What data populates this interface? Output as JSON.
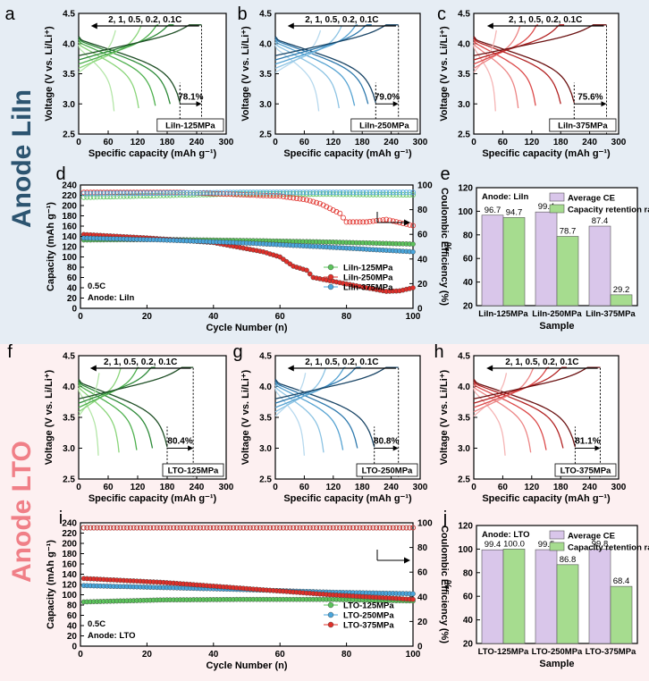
{
  "row_labels": {
    "top": "Anode LiIn",
    "bottom": "Anode LTO"
  },
  "chart_data": [
    {
      "id": "a",
      "type": "line",
      "title": "",
      "rate_label": "2, 1, 0.5, 0.2, 0.1C",
      "sample": "LiIn-125MPa",
      "retention_label": "78.1%",
      "xlabel": "Specific capacity (mAh g⁻¹)",
      "ylabel": "Voltage (V vs. Li/Li⁺)",
      "xlim": [
        0,
        300
      ],
      "ylim": [
        2.5,
        4.5
      ],
      "xticks": [
        "0",
        "60",
        "120",
        "180",
        "240",
        "300"
      ],
      "yticks": [
        "2.5",
        "3.0",
        "3.5",
        "4.0",
        "4.5"
      ],
      "discharge_end": [
        72,
        122,
        156,
        186,
        206
      ],
      "charge_end": 250,
      "colors": [
        "#b4e6a8",
        "#8ad57a",
        "#4eb04e",
        "#2d8a38",
        "#1f4f26"
      ]
    },
    {
      "id": "b",
      "type": "line",
      "title": "",
      "rate_label": "2, 1, 0.5, 0.2, 0.1C",
      "sample": "LiIn-250MPa",
      "retention_label": "79.0%",
      "xlabel": "Specific capacity (mAh g⁻¹)",
      "ylabel": "Voltage (V vs. Li/Li⁺)",
      "xlim": [
        0,
        300
      ],
      "ylim": [
        2.5,
        4.5
      ],
      "xticks": [
        "0",
        "60",
        "120",
        "180",
        "240",
        "300"
      ],
      "yticks": [
        "2.5",
        "3.0",
        "3.5",
        "4.0",
        "4.5"
      ],
      "discharge_end": [
        90,
        132,
        164,
        192,
        208
      ],
      "charge_end": 255,
      "colors": [
        "#b7d9ee",
        "#8cc3e3",
        "#56a3d2",
        "#2e79ad",
        "#1a4566"
      ]
    },
    {
      "id": "c",
      "type": "line",
      "title": "",
      "rate_label": "2, 1, 0.5, 0.2, 0.1C",
      "sample": "LiIn-375MPa",
      "retention_label": "75.6%",
      "xlabel": "Specific capacity (mAh g⁻¹)",
      "ylabel": "Voltage (V vs. Li/Li⁺)",
      "xlim": [
        0,
        300
      ],
      "ylim": [
        2.5,
        4.5
      ],
      "xticks": [
        "0",
        "60",
        "120",
        "180",
        "240",
        "300"
      ],
      "yticks": [
        "2.5",
        "3.0",
        "3.5",
        "4.0",
        "4.5"
      ],
      "discharge_end": [
        45,
        92,
        128,
        180,
        208
      ],
      "charge_end": 275,
      "colors": [
        "#f5b5b5",
        "#ec8585",
        "#dc4a4a",
        "#b22222",
        "#6b1212"
      ]
    },
    {
      "id": "d",
      "type": "scatter",
      "xlabel": "Cycle Number (n)",
      "ylabel": "Capacity (mAh g⁻¹)",
      "y2label": "Coulombic Efficiency (%)",
      "xlim": [
        0,
        100
      ],
      "ylim": [
        0,
        240
      ],
      "y2lim": [
        0,
        100
      ],
      "xticks": [
        "0",
        "20",
        "40",
        "60",
        "80",
        "100"
      ],
      "yticks": [
        "0",
        "20",
        "40",
        "60",
        "80",
        "100",
        "120",
        "140",
        "160",
        "180",
        "200",
        "220",
        "240"
      ],
      "y2ticks": [
        "0",
        "20",
        "40",
        "60",
        "80",
        "100"
      ],
      "note1": "0.5C",
      "note2": "Anode: LiIn",
      "series": [
        {
          "name": "LiIn-125MPa",
          "color": "#5cc45c",
          "capacity": [
            [
              0,
              133
            ],
            [
              25,
              134
            ],
            [
              50,
              132
            ],
            [
              75,
              129
            ],
            [
              100,
              125
            ]
          ],
          "ce": [
            [
              0,
              90
            ],
            [
              50,
              93
            ],
            [
              100,
              92
            ]
          ]
        },
        {
          "name": "LiIn-250MPa",
          "color": "#e0302a",
          "capacity": [
            [
              0,
              144
            ],
            [
              20,
              137
            ],
            [
              40,
              128
            ],
            [
              55,
              110
            ],
            [
              60,
              100
            ],
            [
              64,
              82
            ],
            [
              68,
              74
            ],
            [
              70,
              60
            ],
            [
              78,
              50
            ],
            [
              86,
              40
            ],
            [
              92,
              33
            ],
            [
              96,
              34
            ],
            [
              100,
              40
            ]
          ],
          "ce": [
            [
              0,
              94
            ],
            [
              30,
              94
            ],
            [
              60,
              91
            ],
            [
              68,
              88
            ],
            [
              72,
              85
            ],
            [
              78,
              77
            ],
            [
              80,
              70
            ],
            [
              86,
              70
            ],
            [
              92,
              72
            ],
            [
              100,
              67
            ]
          ]
        },
        {
          "name": "LiIn-375MPa",
          "color": "#4aa6dc",
          "capacity": [
            [
              0,
              137
            ],
            [
              25,
              133
            ],
            [
              50,
              127
            ],
            [
              75,
              119
            ],
            [
              100,
              110
            ]
          ],
          "ce": [
            [
              0,
              93
            ],
            [
              50,
              94
            ],
            [
              100,
              94
            ]
          ]
        }
      ]
    },
    {
      "id": "e",
      "type": "bar",
      "title": "Anode: LiIn",
      "xlabel": "Sample",
      "ylabel": "%",
      "ylim": [
        20,
        120
      ],
      "yticks": [
        "20",
        "40",
        "60",
        "80",
        "100",
        "120"
      ],
      "categories": [
        "LiIn-125MPa",
        "LiIn-250MPa",
        "LiIn-375MPa"
      ],
      "series": [
        {
          "name": "Average CE",
          "color": "#d9c6ea",
          "values": [
            96.7,
            99.4,
            87.4
          ]
        },
        {
          "name": "Capacity retention rate",
          "color": "#a6dc8f",
          "values": [
            94.7,
            78.7,
            29.2
          ]
        }
      ],
      "value_labels": [
        [
          "96.7",
          "94.7"
        ],
        [
          "99.4",
          "78.7"
        ],
        [
          "87.4",
          "29.2"
        ]
      ]
    },
    {
      "id": "f",
      "type": "line",
      "title": "",
      "rate_label": "2, 1, 0.5, 0.2, 0.1C",
      "sample": "LTO-125MPa",
      "retention_label": "80.4%",
      "xlabel": "Specific capacity (mAh g⁻¹)",
      "ylabel": "Voltage (V vs. Li/Li⁺)",
      "xlim": [
        0,
        300
      ],
      "ylim": [
        2.5,
        4.5
      ],
      "xticks": [
        "0",
        "60",
        "120",
        "180",
        "240",
        "300"
      ],
      "yticks": [
        "2.5",
        "3.0",
        "3.5",
        "4.0",
        "4.5"
      ],
      "discharge_end": [
        40,
        82,
        118,
        150,
        180
      ],
      "charge_end": 233,
      "colors": [
        "#b4e6a8",
        "#8ad57a",
        "#4eb04e",
        "#2d8a38",
        "#1f4f26"
      ]
    },
    {
      "id": "g",
      "type": "line",
      "title": "",
      "rate_label": "2, 1, 0.5, 0.2, 0.1C",
      "sample": "LTO-250MPa",
      "retention_label": "80.8%",
      "xlabel": "Specific capacity (mAh g⁻¹)",
      "ylabel": "Voltage (V vs. Li/Li⁺)",
      "xlim": [
        0,
        300
      ],
      "ylim": [
        2.5,
        4.5
      ],
      "xticks": [
        "0",
        "60",
        "120",
        "180",
        "240",
        "300"
      ],
      "yticks": [
        "2.5",
        "3.0",
        "3.5",
        "4.0",
        "4.5"
      ],
      "discharge_end": [
        60,
        100,
        140,
        170,
        205
      ],
      "charge_end": 255,
      "colors": [
        "#b7d9ee",
        "#8cc3e3",
        "#56a3d2",
        "#2e79ad",
        "#1a4566"
      ]
    },
    {
      "id": "h",
      "type": "line",
      "title": "",
      "rate_label": "2, 1, 0.5, 0.2, 0.1C",
      "sample": "LTO-375MPa",
      "retention_label": "81.1%",
      "xlabel": "Specific capacity (mAh g⁻¹)",
      "ylabel": "Voltage (V vs. Li/Li⁺)",
      "xlim": [
        0,
        300
      ],
      "ylim": [
        2.5,
        4.5
      ],
      "xticks": [
        "0",
        "60",
        "120",
        "180",
        "240",
        "300"
      ],
      "yticks": [
        "2.5",
        "3.0",
        "3.5",
        "4.0",
        "4.5"
      ],
      "discharge_end": [
        65,
        118,
        150,
        185,
        210
      ],
      "charge_end": 262,
      "colors": [
        "#f5b5b5",
        "#ec8585",
        "#dc4a4a",
        "#b22222",
        "#6b1212"
      ]
    },
    {
      "id": "i",
      "type": "scatter",
      "xlabel": "Cycle Number (n)",
      "ylabel": "Capacity (mAh g⁻¹)",
      "y2label": "Coulombic Efficiency (%)",
      "xlim": [
        0,
        100
      ],
      "ylim": [
        0,
        240
      ],
      "y2lim": [
        0,
        100
      ],
      "xticks": [
        "0",
        "20",
        "40",
        "60",
        "80",
        "100"
      ],
      "yticks": [
        "0",
        "20",
        "40",
        "60",
        "80",
        "100",
        "120",
        "140",
        "160",
        "180",
        "200",
        "220",
        "240"
      ],
      "y2ticks": [
        "0",
        "20",
        "40",
        "60",
        "80",
        "100"
      ],
      "note1": "0.5C",
      "note2": "Anode: LTO",
      "series": [
        {
          "name": "LTO-125MPa",
          "color": "#5cc45c",
          "capacity": [
            [
              0,
              86
            ],
            [
              25,
              90
            ],
            [
              50,
              91
            ],
            [
              75,
              91
            ],
            [
              100,
              88
            ]
          ],
          "ce": [
            [
              0,
              96
            ],
            [
              50,
              96
            ],
            [
              100,
              96
            ]
          ]
        },
        {
          "name": "LTO-250MPa",
          "color": "#4aa6dc",
          "capacity": [
            [
              0,
              118
            ],
            [
              25,
              114
            ],
            [
              50,
              110
            ],
            [
              75,
              105
            ],
            [
              100,
              102
            ]
          ],
          "ce": [
            [
              0,
              96
            ],
            [
              50,
              96
            ],
            [
              100,
              96
            ]
          ]
        },
        {
          "name": "LTO-375MPa",
          "color": "#e0302a",
          "capacity": [
            [
              0,
              132
            ],
            [
              25,
              124
            ],
            [
              50,
              112
            ],
            [
              75,
              100
            ],
            [
              100,
              91
            ]
          ],
          "ce": [
            [
              0,
              96
            ],
            [
              50,
              96
            ],
            [
              100,
              96
            ]
          ]
        }
      ]
    },
    {
      "id": "j",
      "type": "bar",
      "title": "Anode: LTO",
      "xlabel": "Sample",
      "ylabel": "%",
      "ylim": [
        20,
        120
      ],
      "yticks": [
        "20",
        "40",
        "60",
        "80",
        "100",
        "120"
      ],
      "categories": [
        "LTO-125MPa",
        "LTO-250MPa",
        "LTO-375MPa"
      ],
      "series": [
        {
          "name": "Average CE",
          "color": "#d9c6ea",
          "values": [
            99.4,
            99.5,
            99.8
          ]
        },
        {
          "name": "Capacity retention rate",
          "color": "#a6dc8f",
          "values": [
            100.0,
            86.8,
            68.4
          ]
        }
      ],
      "value_labels": [
        [
          "99.4",
          "100.0"
        ],
        [
          "99.5",
          "86.8"
        ],
        [
          "99.8",
          "68.4"
        ]
      ]
    }
  ]
}
